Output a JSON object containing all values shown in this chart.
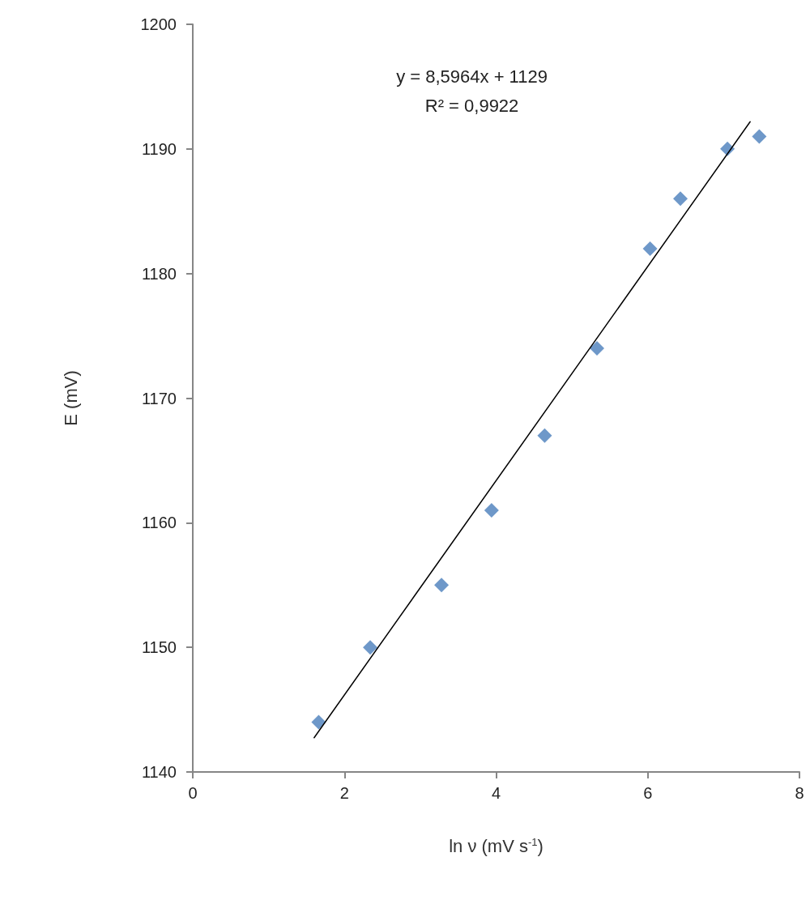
{
  "chart_data": {
    "type": "scatter",
    "xlabel": "ln ν (mV s$^{-1}$)",
    "ylabel": "E (mV)",
    "xlim": [
      0,
      8
    ],
    "xticks": [
      0,
      2,
      4,
      6,
      8
    ],
    "ylim": [
      1140,
      1200
    ],
    "yticks": [
      1140,
      1150,
      1160,
      1170,
      1180,
      1190,
      1200
    ],
    "grid": false,
    "marker": "diamond",
    "annotations": [
      "y = 8,5964x + 1129",
      "R² = 0,9922"
    ],
    "series": [
      {
        "color": "#4a7ebb",
        "x": [
          1.66,
          2.34,
          3.28,
          3.94,
          4.64,
          5.33,
          6.03,
          6.43,
          7.05,
          7.47
        ],
        "values": [
          1144,
          1150,
          1155,
          1161,
          1167,
          1174,
          1182,
          1186,
          1190,
          1191
        ]
      },
      {
        "type": "line",
        "color": "#000000",
        "marker": "none",
        "line_style": "solid",
        "x": [
          1.6,
          7.35
        ],
        "values": [
          1142.75,
          1192.18
        ]
      }
    ]
  }
}
